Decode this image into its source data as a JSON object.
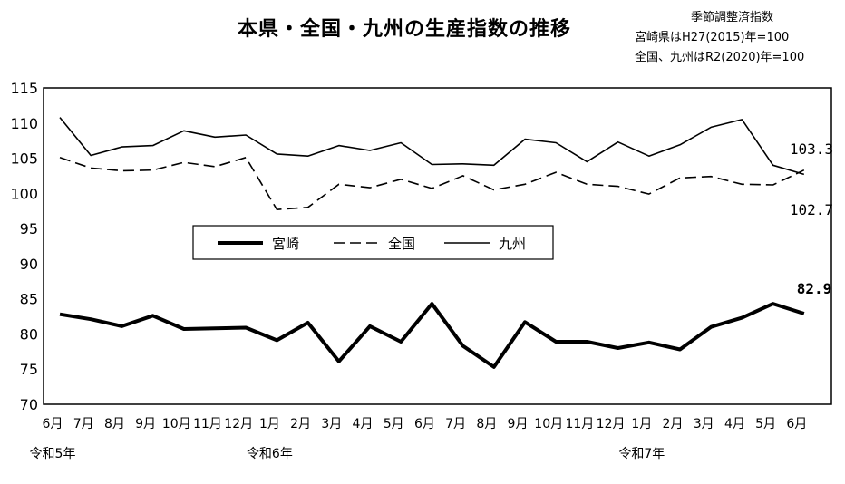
{
  "chart_data": {
    "type": "line",
    "title": "本県・全国・九州の生産指数の推移",
    "notes": [
      "季節調整済指数",
      "宮崎県はH27(2015)年=100",
      "全国、九州はR2(2020)年=100"
    ],
    "categories": [
      "6月",
      "7月",
      "8月",
      "9月",
      "10月",
      "11月",
      "12月",
      "1月",
      "2月",
      "3月",
      "4月",
      "5月",
      "6月",
      "7月",
      "8月",
      "9月",
      "10月",
      "11月",
      "12月",
      "1月",
      "2月",
      "3月",
      "4月",
      "5月",
      "6月"
    ],
    "era_labels": [
      {
        "index": 0,
        "label": "令和5年"
      },
      {
        "index": 7,
        "label": "令和6年"
      },
      {
        "index": 19,
        "label": "令和7年"
      }
    ],
    "ylim": [
      70,
      115
    ],
    "yticks": [
      70,
      75,
      80,
      85,
      90,
      95,
      100,
      105,
      110,
      115
    ],
    "grid": false,
    "legend_position": "center-left",
    "series": [
      {
        "name": "宮崎",
        "style": "bold-solid",
        "values": [
          82.8,
          82.1,
          81.1,
          82.6,
          80.7,
          80.8,
          80.9,
          79.1,
          81.6,
          76.1,
          81.1,
          78.9,
          84.3,
          78.3,
          75.3,
          81.7,
          78.9,
          78.9,
          78.0,
          78.8,
          77.8,
          81.0,
          82.3,
          84.3,
          82.9
        ]
      },
      {
        "name": "全国",
        "style": "dashed",
        "values": [
          105.1,
          103.6,
          103.2,
          103.3,
          104.4,
          103.8,
          105.1,
          97.7,
          98.0,
          101.3,
          100.8,
          102.0,
          100.7,
          102.5,
          100.5,
          101.3,
          103.0,
          101.3,
          101.0,
          99.9,
          102.2,
          102.4,
          101.3,
          101.2,
          103.3
        ]
      },
      {
        "name": "九州",
        "style": "thin-solid",
        "values": [
          110.8,
          105.4,
          106.6,
          106.8,
          108.9,
          108.0,
          108.3,
          105.6,
          105.3,
          106.8,
          106.1,
          107.2,
          104.1,
          104.2,
          104.0,
          107.7,
          107.2,
          104.5,
          107.3,
          105.3,
          106.9,
          109.4,
          110.5,
          104.0,
          102.7
        ]
      }
    ],
    "end_labels": [
      {
        "series": "宮崎",
        "text": "82.9"
      },
      {
        "series": "全国",
        "text": "103.3"
      },
      {
        "series": "九州",
        "text": "102.7"
      }
    ]
  }
}
